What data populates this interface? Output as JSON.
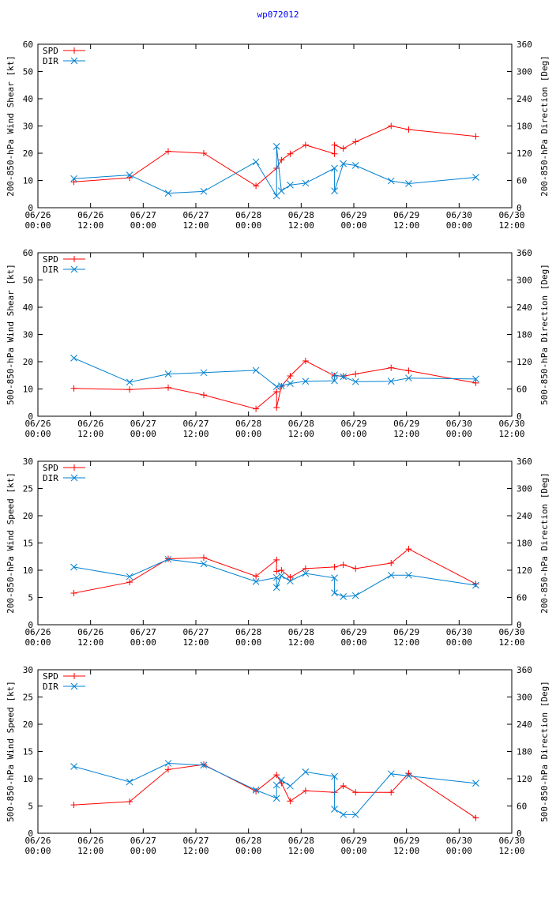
{
  "page": {
    "title": "wp072012"
  },
  "colors": {
    "spd": "#ff0000",
    "dir": "#0080d0",
    "title": "#0000ff",
    "frame": "#000000"
  },
  "chart_data": [
    {
      "type": "line",
      "ylabel": "200-850-hPa Wind Shear [kt]",
      "y2label": "200-850-hPa Direction [Deg]",
      "ylim": [
        0,
        60
      ],
      "yticks": [
        0,
        10,
        20,
        30,
        40,
        50,
        60
      ],
      "y2lim": [
        0,
        360
      ],
      "y2ticks": [
        0,
        60,
        120,
        180,
        240,
        300,
        360
      ],
      "xlim": [
        0,
        108
      ],
      "xticks": [
        {
          "h": 0,
          "date": "06/26",
          "time": "00:00"
        },
        {
          "h": 12,
          "date": "06/26",
          "time": "12:00"
        },
        {
          "h": 24,
          "date": "06/27",
          "time": "00:00"
        },
        {
          "h": 36,
          "date": "06/27",
          "time": "12:00"
        },
        {
          "h": 48,
          "date": "06/28",
          "time": "00:00"
        },
        {
          "h": 60,
          "date": "06/28",
          "time": "12:00"
        },
        {
          "h": 72,
          "date": "06/29",
          "time": "00:00"
        },
        {
          "h": 84,
          "date": "06/29",
          "time": "12:00"
        },
        {
          "h": 96,
          "date": "06/30",
          "time": "00:00"
        },
        {
          "h": 108,
          "date": "06/30",
          "time": "12:00"
        }
      ],
      "legend": [
        "SPD",
        "DIR"
      ],
      "series": [
        {
          "name": "SPD",
          "axis": "left",
          "marker": "plus",
          "x": [
            8.2,
            20.9,
            29.7,
            37.8,
            49.7,
            54.4,
            55.5,
            57.5,
            61.0,
            67.6,
            67.6,
            69.6,
            72.4,
            80.5,
            84.5,
            99.8
          ],
          "y": [
            9.5,
            11.0,
            20.7,
            20.0,
            8.0,
            14.5,
            17.5,
            19.8,
            23.0,
            19.8,
            23.0,
            21.7,
            24.2,
            30.0,
            28.7,
            26.2
          ]
        },
        {
          "name": "DIR",
          "axis": "right",
          "marker": "cross",
          "x": [
            8.2,
            20.9,
            29.7,
            37.8,
            49.7,
            54.4,
            54.4,
            55.5,
            57.5,
            61.0,
            67.6,
            67.6,
            69.6,
            72.4,
            80.5,
            84.5,
            99.8
          ],
          "y": [
            64,
            72,
            32,
            36,
            101,
            26,
            135,
            37,
            50,
            54,
            87,
            37,
            97,
            93,
            59,
            53,
            67
          ]
        }
      ]
    },
    {
      "type": "line",
      "ylabel": "500-850-hPa Wind Shear [kt]",
      "y2label": "500-850-hPa Direction [Deg]",
      "ylim": [
        0,
        60
      ],
      "yticks": [
        0,
        10,
        20,
        30,
        40,
        50,
        60
      ],
      "y2lim": [
        0,
        360
      ],
      "y2ticks": [
        0,
        60,
        120,
        180,
        240,
        300,
        360
      ],
      "xlim": [
        0,
        108
      ],
      "xticks": [
        {
          "h": 0,
          "date": "06/26",
          "time": "00:00"
        },
        {
          "h": 12,
          "date": "06/26",
          "time": "12:00"
        },
        {
          "h": 24,
          "date": "06/27",
          "time": "00:00"
        },
        {
          "h": 36,
          "date": "06/27",
          "time": "12:00"
        },
        {
          "h": 48,
          "date": "06/28",
          "time": "00:00"
        },
        {
          "h": 60,
          "date": "06/28",
          "time": "12:00"
        },
        {
          "h": 72,
          "date": "06/29",
          "time": "00:00"
        },
        {
          "h": 84,
          "date": "06/29",
          "time": "12:00"
        },
        {
          "h": 96,
          "date": "06/30",
          "time": "00:00"
        },
        {
          "h": 108,
          "date": "06/30",
          "time": "12:00"
        }
      ],
      "legend": [
        "SPD",
        "DIR"
      ],
      "series": [
        {
          "name": "SPD",
          "axis": "left",
          "marker": "plus",
          "x": [
            8.2,
            20.9,
            29.7,
            37.8,
            49.7,
            54.4,
            54.4,
            55.5,
            57.5,
            61.0,
            67.6,
            69.6,
            72.4,
            80.5,
            84.5,
            99.8
          ],
          "y": [
            10.2,
            9.8,
            10.5,
            7.8,
            2.7,
            9.0,
            3.2,
            11.0,
            14.8,
            20.3,
            14.8,
            14.7,
            15.5,
            17.8,
            16.7,
            12.2
          ]
        },
        {
          "name": "DIR",
          "axis": "right",
          "marker": "cross",
          "x": [
            8.2,
            20.9,
            29.7,
            37.8,
            49.7,
            54.4,
            55.5,
            57.5,
            61.0,
            67.6,
            67.6,
            69.6,
            72.4,
            80.5,
            84.5,
            99.8
          ],
          "y": [
            128,
            75,
            93,
            96,
            101,
            65,
            67,
            72,
            77,
            78,
            91,
            87,
            76,
            77,
            84,
            82
          ]
        }
      ]
    },
    {
      "type": "line",
      "ylabel": "200-850-hPa Wind Speed [kt]",
      "y2label": "200-850-hPa Direction [Deg]",
      "ylim": [
        0,
        30
      ],
      "yticks": [
        0,
        5,
        10,
        15,
        20,
        25,
        30
      ],
      "y2lim": [
        0,
        360
      ],
      "y2ticks": [
        0,
        60,
        120,
        180,
        240,
        300,
        360
      ],
      "xlim": [
        0,
        108
      ],
      "xticks": [
        {
          "h": 0,
          "date": "06/26",
          "time": "00:00"
        },
        {
          "h": 12,
          "date": "06/26",
          "time": "12:00"
        },
        {
          "h": 24,
          "date": "06/27",
          "time": "00:00"
        },
        {
          "h": 36,
          "date": "06/27",
          "time": "12:00"
        },
        {
          "h": 48,
          "date": "06/28",
          "time": "00:00"
        },
        {
          "h": 60,
          "date": "06/28",
          "time": "12:00"
        },
        {
          "h": 72,
          "date": "06/29",
          "time": "00:00"
        },
        {
          "h": 84,
          "date": "06/29",
          "time": "12:00"
        },
        {
          "h": 96,
          "date": "06/30",
          "time": "00:00"
        },
        {
          "h": 108,
          "date": "06/30",
          "time": "12:00"
        }
      ],
      "legend": [
        "SPD",
        "DIR"
      ],
      "series": [
        {
          "name": "SPD",
          "axis": "left",
          "marker": "plus",
          "x": [
            8.2,
            20.9,
            29.7,
            37.8,
            49.7,
            54.4,
            54.4,
            55.5,
            57.5,
            61.0,
            67.6,
            69.6,
            72.4,
            80.5,
            84.5,
            99.8
          ],
          "y": [
            5.8,
            7.8,
            12.1,
            12.3,
            8.9,
            11.9,
            9.8,
            10.0,
            8.7,
            10.3,
            10.6,
            11.0,
            10.3,
            11.3,
            13.9,
            7.5
          ]
        },
        {
          "name": "DIR",
          "axis": "right",
          "marker": "cross",
          "x": [
            8.2,
            20.9,
            29.7,
            37.8,
            49.7,
            54.4,
            54.4,
            55.5,
            57.5,
            61.0,
            67.6,
            67.6,
            69.6,
            72.4,
            80.5,
            84.5,
            99.8
          ],
          "y": [
            127,
            106,
            144,
            134,
            95,
            104,
            82,
            108,
            96,
            113,
            103,
            70,
            62,
            64,
            109,
            109,
            87
          ]
        }
      ]
    },
    {
      "type": "line",
      "ylabel": "500-850-hPa Wind Speed [kt]",
      "y2label": "500-850-hPa Direction [Deg]",
      "ylim": [
        0,
        30
      ],
      "yticks": [
        0,
        5,
        10,
        15,
        20,
        25,
        30
      ],
      "y2lim": [
        0,
        360
      ],
      "y2ticks": [
        0,
        60,
        120,
        180,
        240,
        300,
        360
      ],
      "xlim": [
        0,
        108
      ],
      "xticks": [
        {
          "h": 0,
          "date": "06/26",
          "time": "00:00"
        },
        {
          "h": 12,
          "date": "06/26",
          "time": "12:00"
        },
        {
          "h": 24,
          "date": "06/27",
          "time": "00:00"
        },
        {
          "h": 36,
          "date": "06/27",
          "time": "12:00"
        },
        {
          "h": 48,
          "date": "06/28",
          "time": "00:00"
        },
        {
          "h": 60,
          "date": "06/28",
          "time": "12:00"
        },
        {
          "h": 72,
          "date": "06/29",
          "time": "00:00"
        },
        {
          "h": 84,
          "date": "06/29",
          "time": "12:00"
        },
        {
          "h": 96,
          "date": "06/30",
          "time": "00:00"
        },
        {
          "h": 108,
          "date": "06/30",
          "time": "12:00"
        }
      ],
      "legend": [
        "SPD",
        "DIR"
      ],
      "series": [
        {
          "name": "SPD",
          "axis": "left",
          "marker": "plus",
          "x": [
            8.2,
            20.9,
            29.7,
            37.8,
            49.7,
            54.4,
            55.5,
            57.5,
            61.0,
            67.6,
            69.6,
            72.4,
            80.5,
            84.5,
            99.8
          ],
          "y": [
            5.2,
            5.8,
            11.7,
            12.6,
            7.7,
            10.7,
            9.2,
            5.9,
            7.8,
            7.5,
            8.7,
            7.5,
            7.5,
            11.0,
            2.8
          ]
        },
        {
          "name": "DIR",
          "axis": "right",
          "marker": "cross",
          "x": [
            8.2,
            20.9,
            29.7,
            37.8,
            49.7,
            54.4,
            54.4,
            55.5,
            57.5,
            61.0,
            67.6,
            67.6,
            69.6,
            72.4,
            80.5,
            84.5,
            99.8
          ],
          "y": [
            147,
            113,
            154,
            150,
            95,
            77,
            106,
            117,
            104,
            135,
            125,
            53,
            41,
            41,
            131,
            126,
            110
          ]
        }
      ]
    }
  ]
}
